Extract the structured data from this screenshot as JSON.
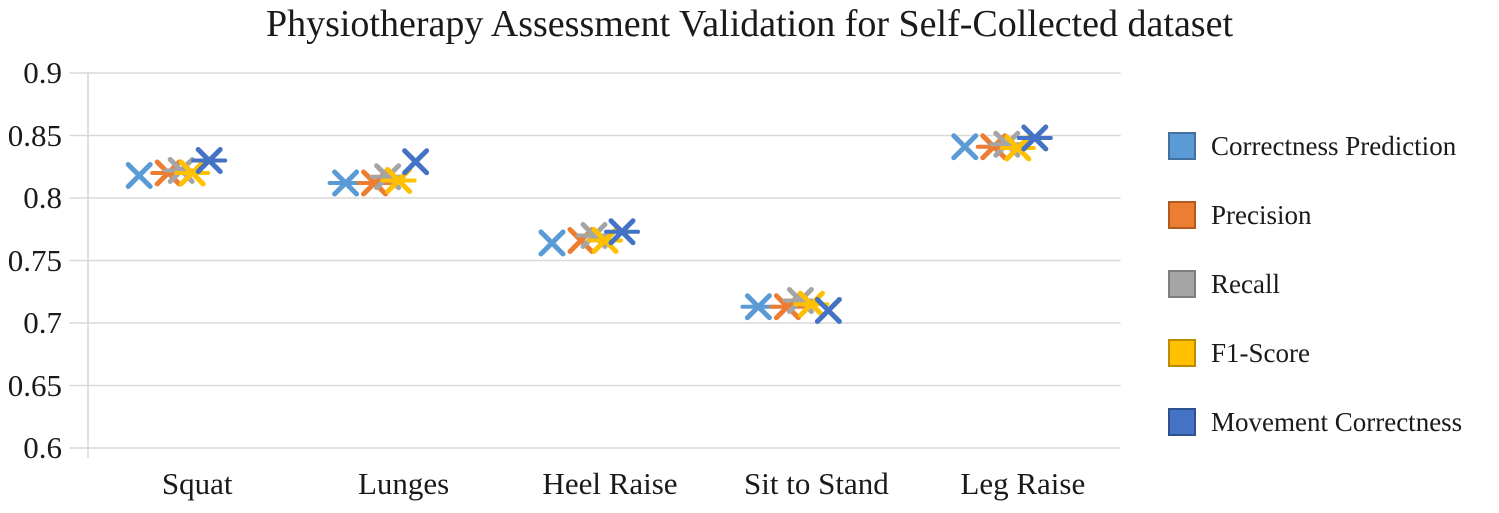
{
  "title": "Physiotherapy Assessment Validation for Self-Collected dataset",
  "chart_data": {
    "type": "scatter",
    "title": "Physiotherapy Assessment Validation for Self-Collected dataset",
    "xlabel": "",
    "ylabel": "",
    "categories": [
      "Squat",
      "Lunges",
      "Heel Raise",
      "Sit to Stand",
      "Leg Raise"
    ],
    "series": [
      {
        "name": "Correctness Prediction",
        "color": "#5B9BD5",
        "border_color": "#41719C",
        "marker": "x",
        "values": [
          0.818,
          0.812,
          0.764,
          0.713,
          0.841
        ],
        "bar_marker": [
          false,
          true,
          false,
          true,
          false
        ]
      },
      {
        "name": "Precision",
        "color": "#ED7D31",
        "border_color": "#AE5A21",
        "marker": "x",
        "values": [
          0.82,
          0.812,
          0.766,
          0.713,
          0.841
        ],
        "bar_marker": [
          true,
          true,
          false,
          true,
          true
        ]
      },
      {
        "name": "Recall",
        "color": "#A5A5A5",
        "border_color": "#7F7F7F",
        "marker": "x",
        "values": [
          0.822,
          0.817,
          0.77,
          0.718,
          0.843
        ],
        "bar_marker": [
          true,
          true,
          true,
          true,
          true
        ]
      },
      {
        "name": "F1-Score",
        "color": "#FFC000",
        "border_color": "#BC8C00",
        "marker": "x",
        "values": [
          0.82,
          0.814,
          0.766,
          0.715,
          0.84
        ],
        "bar_marker": [
          true,
          true,
          true,
          true,
          true
        ]
      },
      {
        "name": "Movement Correctness",
        "color": "#4472C4",
        "border_color": "#2F528F",
        "marker": "x",
        "values": [
          0.83,
          0.829,
          0.773,
          0.71,
          0.848
        ],
        "bar_marker": [
          true,
          false,
          true,
          false,
          true
        ]
      }
    ],
    "ylim": [
      0.6,
      0.9
    ],
    "ytick_step": 0.05,
    "ytick_labels": [
      "0.9",
      "0.85",
      "0.8",
      "0.75",
      "0.7",
      "0.65",
      "0.6"
    ],
    "grid": "horizontal",
    "gridline_color": "#D9D9D9",
    "legend_position": "right"
  }
}
